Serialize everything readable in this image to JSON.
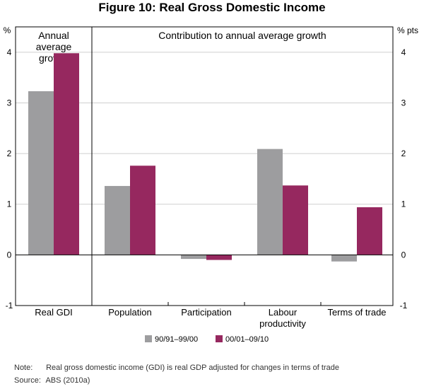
{
  "chart_data": {
    "type": "bar",
    "title": "Figure 10: Real Gross Domestic Income",
    "left_unit": "%",
    "right_unit": "% pts",
    "ylim": [
      -1,
      4.5
    ],
    "yticks": [
      -1,
      0,
      1,
      2,
      3,
      4
    ],
    "panels": [
      {
        "label_lines": [
          "Annual",
          "average",
          "growth"
        ],
        "categories": [
          "Real GDI"
        ]
      },
      {
        "label_lines": [
          "Contribution to annual average growth"
        ],
        "categories": [
          "Population",
          "Participation",
          "Labour productivity",
          "Terms of trade"
        ]
      }
    ],
    "categories": [
      "Real GDI",
      "Population",
      "Participation",
      "Labour productivity",
      "Terms of trade"
    ],
    "category_label_lines": [
      [
        "Real GDI"
      ],
      [
        "Population"
      ],
      [
        "Participation"
      ],
      [
        "Labour",
        "productivity"
      ],
      [
        "Terms of trade"
      ]
    ],
    "series": [
      {
        "name": "90/91–99/00",
        "color": "#9d9d9f",
        "values": [
          3.23,
          1.36,
          -0.08,
          2.09,
          -0.13
        ]
      },
      {
        "name": "00/01–09/10",
        "color": "#96285f",
        "values": [
          3.98,
          1.76,
          -0.1,
          1.37,
          0.94
        ]
      }
    ]
  },
  "notes": {
    "note_label": "Note:",
    "note_text": "Real gross domestic income (GDI) is real GDP adjusted for changes in terms of trade",
    "source_label": "Source:",
    "source_text": "ABS (2010a)"
  }
}
